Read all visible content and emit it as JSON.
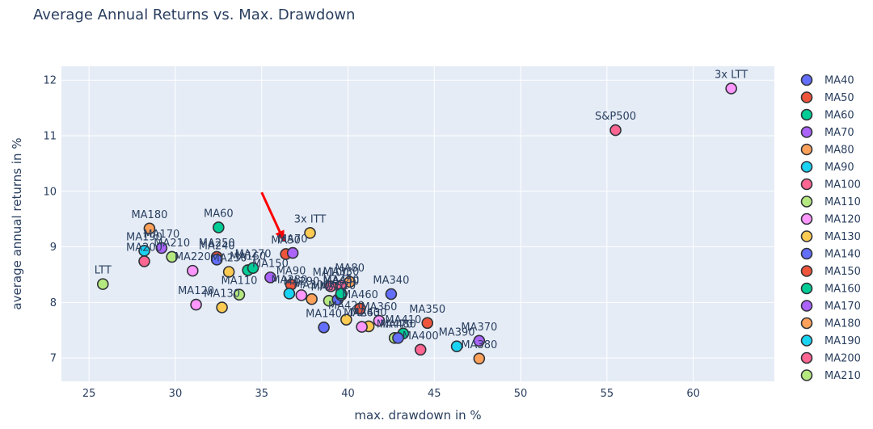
{
  "chart_data": {
    "type": "scatter",
    "title": "Average Annual Returns vs. Max. Drawdown",
    "xlabel": "max. drawdown in %",
    "ylabel": "average annual returns in %",
    "xlim": [
      23.4,
      64.7
    ],
    "ylim": [
      6.58,
      12.25
    ],
    "xticks": [
      25,
      30,
      35,
      40,
      45,
      50,
      55,
      60
    ],
    "yticks": [
      7,
      8,
      9,
      10,
      11,
      12
    ],
    "grid": true,
    "legend": "right",
    "legend_entries": [
      {
        "name": "MA40",
        "color": "#636efa"
      },
      {
        "name": "MA50",
        "color": "#EF553B"
      },
      {
        "name": "MA60",
        "color": "#00cc96"
      },
      {
        "name": "MA70",
        "color": "#ab63fa"
      },
      {
        "name": "MA80",
        "color": "#FFA15A"
      },
      {
        "name": "MA90",
        "color": "#19d3f3"
      },
      {
        "name": "MA100",
        "color": "#FF6692"
      },
      {
        "name": "MA110",
        "color": "#B6E880"
      },
      {
        "name": "MA120",
        "color": "#FF97FF"
      },
      {
        "name": "MA130",
        "color": "#FECB52"
      },
      {
        "name": "MA140",
        "color": "#636efa"
      },
      {
        "name": "MA150",
        "color": "#EF553B"
      },
      {
        "name": "MA160",
        "color": "#00cc96"
      },
      {
        "name": "MA170",
        "color": "#ab63fa"
      },
      {
        "name": "MA180",
        "color": "#FFA15A"
      },
      {
        "name": "MA190",
        "color": "#19d3f3"
      },
      {
        "name": "MA200",
        "color": "#FF6692"
      },
      {
        "name": "MA210",
        "color": "#B6E880"
      }
    ],
    "points": [
      {
        "label": "3x LTT",
        "x": 62.2,
        "y": 11.85,
        "color": "#FF97FF"
      },
      {
        "label": "S&P500",
        "x": 55.5,
        "y": 11.1,
        "color": "#FF6692"
      },
      {
        "label": "3x ITT",
        "x": 37.8,
        "y": 9.25,
        "color": "#FECB52"
      },
      {
        "label": "MA60",
        "x": 32.5,
        "y": 9.35,
        "color": "#00cc96"
      },
      {
        "label": "MA180",
        "x": 28.5,
        "y": 9.33,
        "color": "#FFA15A"
      },
      {
        "label": "LTT",
        "x": 25.8,
        "y": 8.33,
        "color": "#B6E880"
      },
      {
        "label": "MA170",
        "x": 29.2,
        "y": 8.98,
        "color": "#ab63fa"
      },
      {
        "label": "MA190",
        "x": 28.2,
        "y": 8.93,
        "color": "#19d3f3"
      },
      {
        "label": "MA210",
        "x": 29.8,
        "y": 8.82,
        "color": "#B6E880"
      },
      {
        "label": "MA200",
        "x": 28.2,
        "y": 8.74,
        "color": "#FF6692"
      },
      {
        "label": "MA250",
        "x": 32.4,
        "y": 8.82,
        "color": "#EF553B"
      },
      {
        "label": "MA240",
        "x": 32.4,
        "y": 8.77,
        "color": "#636efa"
      },
      {
        "label": "MA230",
        "x": 33.1,
        "y": 8.55,
        "color": "#FECB52"
      },
      {
        "label": "MA220",
        "x": 31.0,
        "y": 8.57,
        "color": "#FF97FF"
      },
      {
        "label": "MA160",
        "x": 34.2,
        "y": 8.58,
        "color": "#00cc96"
      },
      {
        "label": "MA270",
        "x": 34.5,
        "y": 8.62,
        "color": "#00cc96"
      },
      {
        "label": "MA50",
        "x": 36.4,
        "y": 8.87,
        "color": "#EF553B"
      },
      {
        "label": "MA70",
        "x": 36.8,
        "y": 8.89,
        "color": "#ab63fa"
      },
      {
        "label": "MA150",
        "x": 35.5,
        "y": 8.45,
        "color": "#ab63fa"
      },
      {
        "label": "MA110",
        "x": 33.7,
        "y": 8.14,
        "color": "#B6E880"
      },
      {
        "label": "MA120",
        "x": 31.2,
        "y": 7.96,
        "color": "#FF97FF"
      },
      {
        "label": "MA130",
        "x": 32.7,
        "y": 7.91,
        "color": "#FECB52"
      },
      {
        "label": "MA80",
        "x": 40.1,
        "y": 8.37,
        "color": "#FFA15A"
      },
      {
        "label": "MA100",
        "x": 39.0,
        "y": 8.29,
        "color": "#FF6692"
      },
      {
        "label": "MA90",
        "x": 36.7,
        "y": 8.32,
        "color": "#EF553B"
      },
      {
        "label": "MA280",
        "x": 36.6,
        "y": 8.16,
        "color": "#19d3f3"
      },
      {
        "label": "MA290",
        "x": 37.3,
        "y": 8.13,
        "color": "#FF97FF"
      },
      {
        "label": "MA300",
        "x": 37.9,
        "y": 8.06,
        "color": "#FFA15A"
      },
      {
        "label": "MA310",
        "x": 38.9,
        "y": 8.03,
        "color": "#B6E880"
      },
      {
        "label": "MA320",
        "x": 39.4,
        "y": 8.05,
        "color": "#636efa"
      },
      {
        "label": "MA330",
        "x": 39.6,
        "y": 8.3,
        "color": "#FF6692"
      },
      {
        "label": "MA440",
        "x": 39.6,
        "y": 8.13,
        "color": "#19d3f3"
      },
      {
        "label": "MA450",
        "x": 39.6,
        "y": 8.16,
        "color": "#00cc96"
      },
      {
        "label": "MA340",
        "x": 42.5,
        "y": 8.15,
        "color": "#636efa"
      },
      {
        "label": "MA350",
        "x": 44.6,
        "y": 7.63,
        "color": "#EF553B"
      },
      {
        "label": "MA140",
        "x": 38.6,
        "y": 7.55,
        "color": "#636efa"
      },
      {
        "label": "MA460",
        "x": 40.7,
        "y": 7.89,
        "color": "#EF553B"
      },
      {
        "label": "MA420",
        "x": 39.9,
        "y": 7.69,
        "color": "#FECB52"
      },
      {
        "label": "MA430",
        "x": 41.2,
        "y": 7.57,
        "color": "#FECB52"
      },
      {
        "label": "MA260",
        "x": 40.8,
        "y": 7.56,
        "color": "#FF97FF"
      },
      {
        "label": "MA360",
        "x": 41.8,
        "y": 7.67,
        "color": "#FF97FF"
      },
      {
        "label": "MA410",
        "x": 43.2,
        "y": 7.44,
        "color": "#00cc96"
      },
      {
        "label": "MA400",
        "x": 44.2,
        "y": 7.15,
        "color": "#FF6692"
      },
      {
        "label": "MA390",
        "x": 46.3,
        "y": 7.21,
        "color": "#19d3f3"
      },
      {
        "label": "MA370",
        "x": 47.6,
        "y": 7.31,
        "color": "#ab63fa"
      },
      {
        "label": "MA380",
        "x": 47.6,
        "y": 6.99,
        "color": "#FFA15A"
      },
      {
        "label": "MA470",
        "x": 42.7,
        "y": 7.36,
        "color": "#B6E880"
      },
      {
        "label": "MA480",
        "x": 42.9,
        "y": 7.36,
        "color": "#636efa"
      }
    ]
  }
}
